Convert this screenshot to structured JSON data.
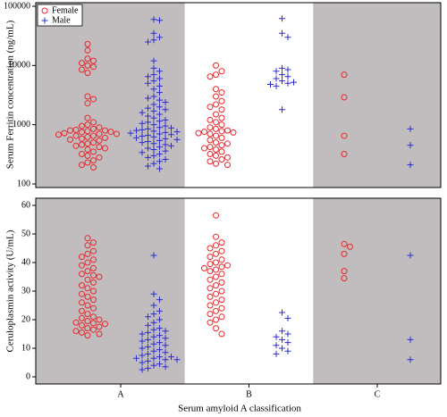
{
  "chart_data": [
    {
      "type": "strip",
      "y_label": "Serum Ferritin concentration (ng/mL)",
      "log_y": true,
      "ylim": [
        87,
        115000
      ],
      "yticks": [
        100,
        1000,
        10000,
        100000
      ],
      "legend": "upper left",
      "band_colors": [
        "#c1bdbe",
        "#ffffff",
        "#c1bdbe"
      ],
      "series": [
        {
          "name": "Female",
          "color": "#e8262a",
          "marker": "circle",
          "values": [
            [
              23000,
              18000,
              13000,
              12000,
              11000,
              10000,
              9500,
              8500,
              7500,
              3000,
              2700,
              2300,
              1300,
              1100,
              1000,
              950,
              900,
              850,
              820,
              800,
              800,
              780,
              760,
              750,
              720,
              700,
              700,
              680,
              650,
              650,
              620,
              600,
              580,
              560,
              540,
              500,
              480,
              460,
              440,
              420,
              400,
              380,
              350,
              320,
              300,
              280,
              250,
              230,
              210,
              190
            ],
            [
              10000,
              8000,
              7000,
              6500,
              4000,
              3500,
              3000,
              2500,
              2200,
              2000,
              1800,
              1500,
              1300,
              1200,
              1100,
              1000,
              900,
              850,
              800,
              780,
              760,
              740,
              720,
              700,
              650,
              600,
              550,
              500,
              480,
              450,
              420,
              400,
              380,
              350,
              320,
              300,
              280,
              260,
              240,
              220,
              210
            ],
            [
              7000,
              2900,
              650,
              320
            ]
          ]
        },
        {
          "name": "Male",
          "color": "#2b2bd6",
          "marker": "plus",
          "values": [
            [
              60000,
              58000,
              35000,
              30000,
              27000,
              25000,
              12000,
              9000,
              8000,
              7000,
              6500,
              6000,
              5500,
              5000,
              4500,
              4000,
              3500,
              3000,
              2800,
              2600,
              2400,
              2200,
              2000,
              1900,
              1800,
              1700,
              1600,
              1500,
              1400,
              1300,
              1200,
              1150,
              1100,
              1050,
              1000,
              950,
              900,
              880,
              850,
              820,
              800,
              780,
              760,
              740,
              720,
              700,
              680,
              660,
              640,
              620,
              600,
              580,
              560,
              540,
              520,
              500,
              480,
              460,
              440,
              420,
              400,
              380,
              360,
              340,
              320,
              300,
              280,
              260,
              240,
              220,
              200,
              180
            ],
            [
              62000,
              35000,
              30000,
              9000,
              8500,
              8000,
              7000,
              6500,
              6000,
              5500,
              5200,
              5000,
              4800,
              4500,
              1800
            ],
            [
              850,
              450,
              210
            ]
          ]
        }
      ]
    },
    {
      "type": "strip",
      "y_label": "Ceruloplasmin activity (U/mL)",
      "x_label": "Serum amyloid A classification",
      "categories": [
        "A",
        "B",
        "C"
      ],
      "ylim": [
        -2.5,
        62.5
      ],
      "yticks": [
        0,
        10,
        20,
        30,
        40,
        50,
        60
      ],
      "band_colors": [
        "#c1bdbe",
        "#ffffff",
        "#c1bdbe"
      ],
      "series": [
        {
          "name": "Female",
          "color": "#e8262a",
          "marker": "circle",
          "values": [
            [
              48.5,
              47,
              46,
              44,
              43,
              42,
              41,
              40,
              39,
              38,
              37,
              36,
              35.5,
              35,
              34,
              33,
              32,
              31,
              30,
              29,
              28,
              27,
              26,
              25,
              24,
              23,
              22,
              21,
              20.5,
              20,
              19.5,
              19,
              18.8,
              18.5,
              18,
              17.5,
              17,
              16.5,
              16,
              15.5,
              15,
              14.5
            ],
            [
              56.5,
              49,
              47,
              46,
              45,
              44,
              43,
              42,
              41,
              40,
              39.5,
              39,
              38.5,
              38,
              37.5,
              37,
              36,
              35,
              34,
              33,
              32,
              31,
              30,
              29,
              28,
              27,
              26,
              25,
              24,
              23,
              22,
              21,
              20,
              19,
              17,
              15
            ],
            [
              46.5,
              45.5,
              43,
              37,
              34.5
            ]
          ]
        },
        {
          "name": "Male",
          "color": "#2b2bd6",
          "marker": "plus",
          "values": [
            [
              42.5,
              29,
              27,
              25,
              23,
              22,
              21,
              20,
              19,
              18,
              17,
              16.5,
              16,
              15.5,
              15,
              14.5,
              14,
              13.5,
              13,
              12.5,
              12,
              11.5,
              11,
              10.5,
              10,
              9.5,
              9,
              8.5,
              8,
              7.5,
              7,
              7,
              6.5,
              6.5,
              6,
              6,
              5.5,
              5,
              4.5,
              4,
              3.5,
              3,
              2.5
            ],
            [
              22.5,
              20.5,
              16,
              15,
              14,
              13,
              12,
              11,
              10,
              9,
              8
            ],
            [
              42.5,
              13,
              6
            ]
          ]
        }
      ]
    }
  ]
}
